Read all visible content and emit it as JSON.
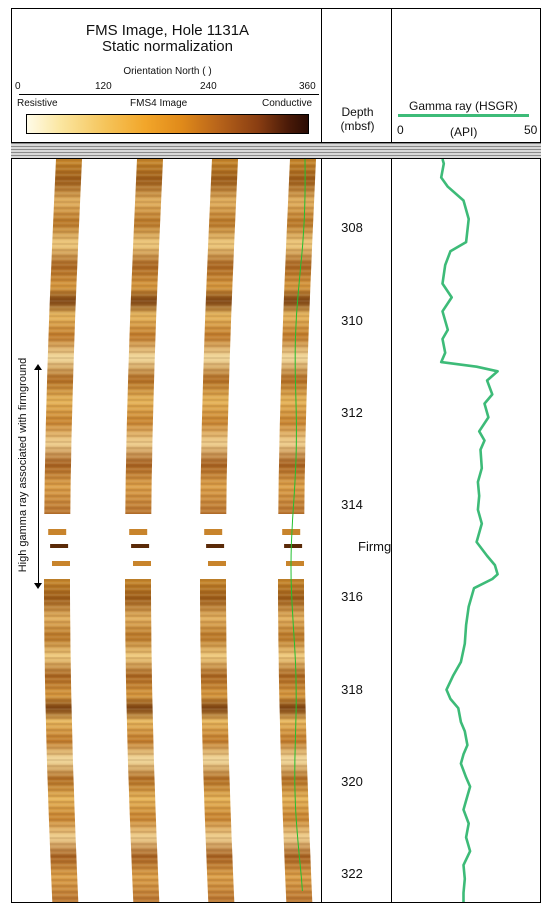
{
  "header": {
    "title_line1": "FMS Image, Hole 1131A",
    "title_line2": "Static normalization",
    "orientation_label": "Orientation North ( )",
    "orientation_ticks": [
      "0",
      "120",
      "240",
      "360"
    ],
    "scale_left": "Resistive",
    "scale_center": "FMS4 Image",
    "scale_right": "Conductive",
    "depth_label_1": "Depth",
    "depth_label_2": "(mbsf)",
    "gamma_label": "Gamma ray (HSGR)",
    "gamma_min": "0",
    "gamma_unit": "(API)",
    "gamma_max": "50"
  },
  "annotations": {
    "side_note": "High gamma ray associated with firmground",
    "firmground": "Firmground"
  },
  "colors": {
    "gamma_line": "#3dbb78",
    "image_curve": "#22c030",
    "scale_low": "#fff8e0",
    "scale_high": "#3a1505"
  },
  "chart_data": {
    "type": "line",
    "title": "FMS Image, Hole 1131A",
    "xlabel": "Gamma ray (HSGR) (API)",
    "ylabel": "Depth (mbsf)",
    "xlim": [
      0,
      50
    ],
    "ylim": [
      306.5,
      322.6
    ],
    "y_ticks": [
      308,
      310,
      312,
      314,
      316,
      318,
      320,
      322
    ],
    "series": [
      {
        "name": "Gamma ray (HSGR)",
        "points": [
          [
            17,
            306.5
          ],
          [
            17.5,
            306.6
          ],
          [
            16.5,
            306.9
          ],
          [
            19,
            307.1
          ],
          [
            25,
            307.4
          ],
          [
            27,
            307.8
          ],
          [
            26,
            308.3
          ],
          [
            20,
            308.5
          ],
          [
            18,
            308.8
          ],
          [
            17,
            309.2
          ],
          [
            20.5,
            309.5
          ],
          [
            17,
            309.8
          ],
          [
            19,
            310.2
          ],
          [
            17,
            310.4
          ],
          [
            18,
            310.7
          ],
          [
            16.5,
            310.9
          ],
          [
            30,
            311.0
          ],
          [
            38,
            311.1
          ],
          [
            34,
            311.3
          ],
          [
            36,
            311.6
          ],
          [
            33,
            311.8
          ],
          [
            34.5,
            312.1
          ],
          [
            31,
            312.4
          ],
          [
            33,
            312.6
          ],
          [
            31.5,
            312.8
          ],
          [
            32,
            313.2
          ],
          [
            30.5,
            313.5
          ],
          [
            31,
            313.8
          ],
          [
            30.5,
            314.1
          ],
          [
            32,
            314.4
          ],
          [
            30,
            314.8
          ],
          [
            34,
            315.1
          ],
          [
            37,
            315.3
          ],
          [
            38,
            315.5
          ],
          [
            36,
            315.6
          ],
          [
            29,
            315.8
          ],
          [
            27,
            316.2
          ],
          [
            26,
            316.6
          ],
          [
            25.5,
            317.0
          ],
          [
            24,
            317.4
          ],
          [
            21,
            317.7
          ],
          [
            18.5,
            318.0
          ],
          [
            20,
            318.2
          ],
          [
            23,
            318.4
          ],
          [
            24,
            318.7
          ],
          [
            25.5,
            318.9
          ],
          [
            26.5,
            319.2
          ],
          [
            25,
            319.4
          ],
          [
            24,
            319.6
          ],
          [
            26,
            319.9
          ],
          [
            27.5,
            320.1
          ],
          [
            26,
            320.4
          ],
          [
            25,
            320.6
          ],
          [
            27,
            320.9
          ],
          [
            26,
            321.2
          ],
          [
            27.5,
            321.5
          ],
          [
            25,
            321.8
          ],
          [
            25.5,
            322.1
          ],
          [
            25,
            322.4
          ],
          [
            25,
            322.6
          ]
        ]
      }
    ]
  }
}
